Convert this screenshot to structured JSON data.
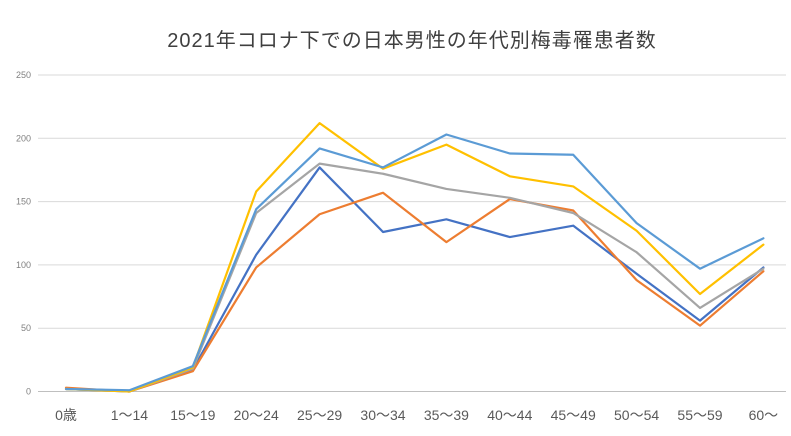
{
  "page": {
    "background": "#ffffff"
  },
  "chart_data": {
    "type": "line",
    "title": "2021年コロナ下での日本男性の年代別梅毒罹患者数",
    "categories": [
      "0歳",
      "1〜14",
      "15〜19",
      "20〜24",
      "25〜29",
      "30〜34",
      "35〜39",
      "40〜44",
      "45〜49",
      "50〜54",
      "55〜59",
      "60〜"
    ],
    "series": [
      {
        "name": "blue",
        "color": "#4472C4",
        "values": [
          2,
          0,
          17,
          108,
          177,
          126,
          136,
          122,
          131,
          93,
          56,
          98
        ]
      },
      {
        "name": "orange",
        "color": "#ED7D31",
        "values": [
          3,
          0,
          16,
          98,
          140,
          157,
          118,
          152,
          143,
          88,
          52,
          95
        ]
      },
      {
        "name": "gray",
        "color": "#A5A5A5",
        "values": [
          2,
          0,
          18,
          141,
          180,
          172,
          160,
          153,
          141,
          110,
          66,
          97
        ]
      },
      {
        "name": "yellow",
        "color": "#FFC000",
        "values": [
          2,
          0,
          19,
          158,
          212,
          176,
          195,
          170,
          162,
          127,
          77,
          116
        ]
      },
      {
        "name": "light-blue",
        "color": "#5B9BD5",
        "values": [
          2,
          1,
          20,
          144,
          192,
          177,
          203,
          188,
          187,
          133,
          97,
          121
        ]
      }
    ],
    "xlabel": "",
    "ylabel": "",
    "ylim": [
      0,
      250
    ],
    "yticks": [
      0,
      50,
      100,
      150,
      200,
      250
    ],
    "grid": true,
    "legend": "none",
    "colors": {
      "gridline": "#D9D9D9",
      "axis_line": "#BFBFBF",
      "y_tick_label": "#808080",
      "x_tick_label": "#595959",
      "title": "#3f3f3f"
    }
  }
}
